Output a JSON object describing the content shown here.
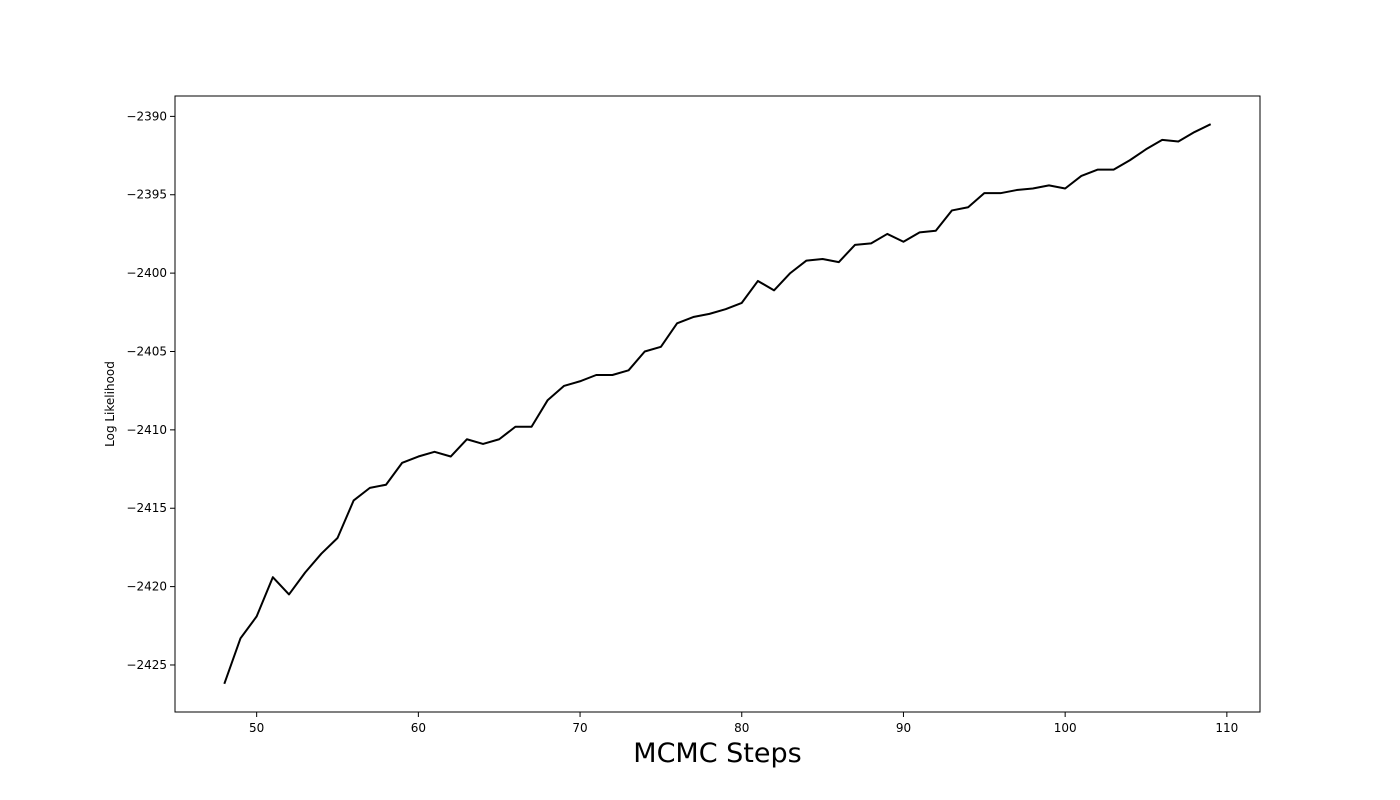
{
  "chart_data": {
    "type": "line",
    "title": "",
    "xlabel": "MCMC Steps",
    "ylabel": "Log Likelihood",
    "xlim": [
      44.95,
      112.05
    ],
    "ylim": [
      -2428.0,
      -2388.7
    ],
    "grid": false,
    "x_ticks": [
      50,
      60,
      70,
      80,
      90,
      100,
      110
    ],
    "x_tick_labels": [
      "50",
      "60",
      "70",
      "80",
      "90",
      "100",
      "110"
    ],
    "y_ticks": [
      -2425,
      -2420,
      -2415,
      -2410,
      -2405,
      -2400,
      -2395,
      -2390
    ],
    "y_tick_labels": [
      "−2425",
      "−2420",
      "−2415",
      "−2410",
      "−2405",
      "−2400",
      "−2395",
      "−2390"
    ],
    "line_color": "#000000",
    "series": [
      {
        "x": [
          48,
          49,
          50,
          51,
          52,
          53,
          54,
          55,
          56,
          57,
          58,
          59,
          60,
          61,
          62,
          63,
          64,
          65,
          66,
          67,
          68,
          69,
          70,
          71,
          72,
          73,
          74,
          75,
          76,
          77,
          78,
          79,
          80,
          81,
          82,
          83,
          84,
          85,
          86,
          87,
          88,
          89,
          90,
          91,
          92,
          93,
          94,
          95,
          96,
          97,
          98,
          99,
          100,
          101,
          102,
          103,
          104,
          105,
          106,
          107,
          108,
          109
        ],
        "values": [
          -2426.2,
          -2423.3,
          -2421.9,
          -2419.4,
          -2420.5,
          -2419.1,
          -2417.9,
          -2416.9,
          -2414.5,
          -2413.7,
          -2413.5,
          -2412.1,
          -2411.7,
          -2411.4,
          -2411.7,
          -2410.6,
          -2410.9,
          -2410.6,
          -2409.8,
          -2409.8,
          -2408.1,
          -2407.2,
          -2406.9,
          -2406.5,
          -2406.5,
          -2406.2,
          -2405.0,
          -2404.7,
          -2403.2,
          -2402.8,
          -2402.6,
          -2402.3,
          -2401.9,
          -2400.5,
          -2401.1,
          -2400.0,
          -2399.2,
          -2399.1,
          -2399.3,
          -2398.2,
          -2398.1,
          -2397.5,
          -2398.0,
          -2397.4,
          -2397.3,
          -2396.0,
          -2395.8,
          -2394.9,
          -2394.9,
          -2394.7,
          -2394.6,
          -2394.4,
          -2394.6,
          -2393.8,
          -2393.4,
          -2393.4,
          -2392.8,
          -2392.1,
          -2391.5,
          -2391.6,
          -2391.0,
          -2390.5
        ]
      }
    ]
  }
}
